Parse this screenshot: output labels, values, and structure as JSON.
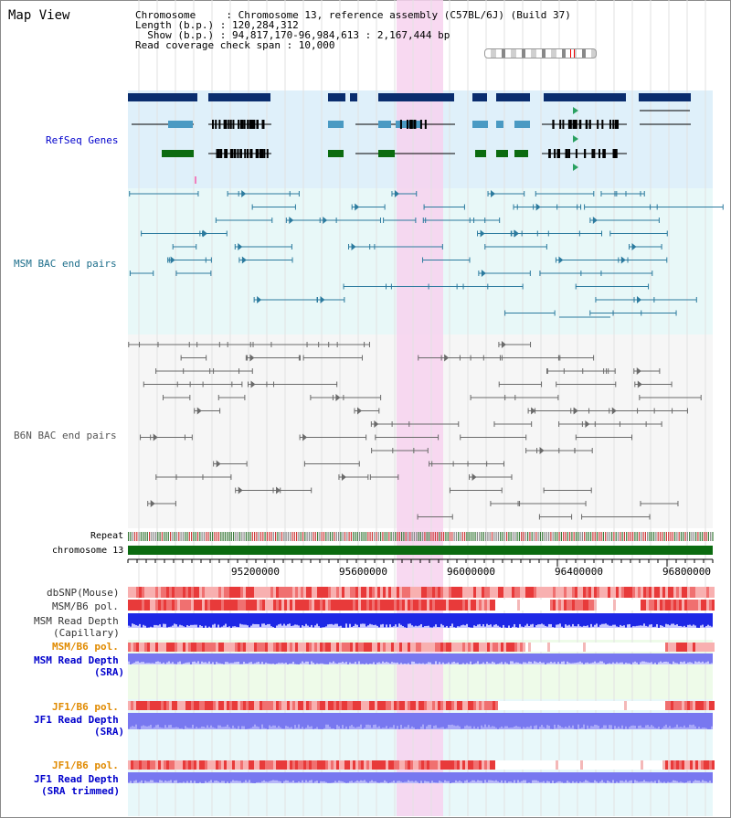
{
  "page_title": "Map View",
  "header": {
    "line1": "Chromosome     : Chromosome 13, reference assembly (C57BL/6J) (Build 37)",
    "line2": "Length (b.p.) : 120,284,312",
    "line3": "  Show (b.p.) : 94,817,170-96,984,613 : 2,167,444 bp",
    "line4": "Read coverage check span : 10,000"
  },
  "labels": {
    "refseq": "RefSeq Genes",
    "msm_bac": "MSM BAC end pairs",
    "b6n_bac": "B6N BAC end pairs",
    "repeat": "Repeat",
    "chromosome": "chromosome 13",
    "dbsnp": "dbSNP(Mouse)",
    "msm_b6_pol": "MSM/B6 pol.",
    "msm_depth_cap_1": "MSM Read Depth",
    "msm_depth_cap_2": "(Capillary)",
    "msm_b6_pol_sra": "MSM/B6 pol.",
    "msm_depth_sra_1": "MSM Read Depth",
    "msm_depth_sra_2": "(SRA)",
    "jf1_b6_pol": "JF1/B6 pol.",
    "jf1_depth_sra_1": "JF1 Read Depth",
    "jf1_depth_sra_2": "(SRA)",
    "jf1_b6_pol_2": "JF1/B6 pol.",
    "jf1_depth_trim_1": "JF1 Read Depth",
    "jf1_depth_trim_2": "(SRA trimmed)"
  },
  "axis": {
    "ticks": [
      "95200000",
      "95600000",
      "96000000",
      "96400000",
      "96800000"
    ]
  },
  "colors": {
    "refseq_bg": "#dff0fa",
    "bac_bg": "#e8f8f8",
    "b6n_bg": "#f6f6f6",
    "highlight": "#f7d2ef",
    "navy": "#0a2d6e",
    "teal": "#2b7a9e",
    "green": "#0b6b10",
    "label_blue": "#0000cc",
    "label_teal": "#1b6d8a",
    "label_orange": "#e08a00",
    "depth_blue": "#1e28e6",
    "depth_light": "#7878f0"
  }
}
